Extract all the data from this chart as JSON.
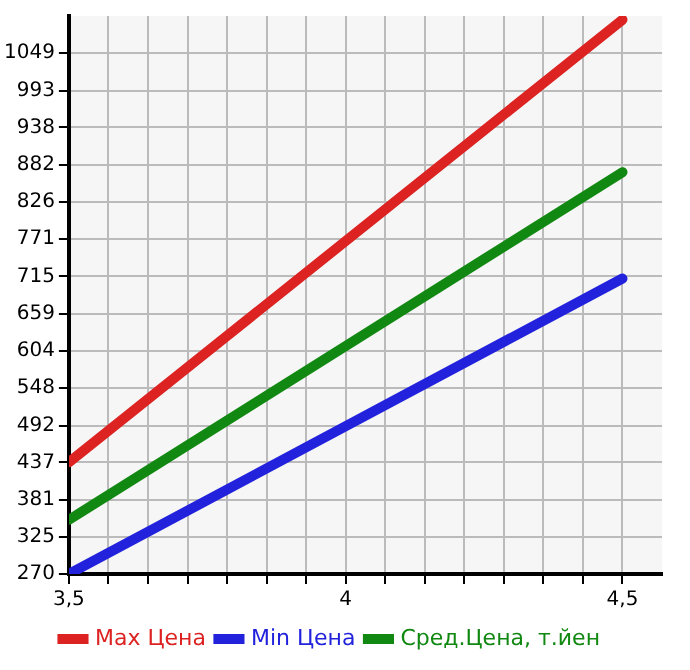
{
  "chart_data": {
    "type": "line",
    "x": [
      3.5,
      4.5
    ],
    "series": [
      {
        "name": "Max Цена",
        "color": "#dd2222",
        "values": [
          437,
          1099
        ]
      },
      {
        "name": "Min Цена",
        "color": "#2222dd",
        "values": [
          270,
          712
        ]
      },
      {
        "name": "Сред.Цена, т.йен",
        "color": "#118811",
        "values": [
          351,
          871
        ]
      }
    ],
    "xlim": [
      3.5,
      4.5714
    ],
    "xticks": [
      {
        "value": 3.5,
        "label": "3,5"
      },
      {
        "value": 3.5714,
        "label": null
      },
      {
        "value": 3.6429,
        "label": null
      },
      {
        "value": 3.7143,
        "label": null
      },
      {
        "value": 3.7857,
        "label": null
      },
      {
        "value": 3.8571,
        "label": null
      },
      {
        "value": 3.9286,
        "label": null
      },
      4,
      {
        "value": 4.0714,
        "label": null
      },
      {
        "value": 4.1429,
        "label": null
      },
      {
        "value": 4.2143,
        "label": null
      },
      {
        "value": 4.2857,
        "label": null
      },
      {
        "value": 4.3571,
        "label": null
      },
      {
        "value": 4.4286,
        "label": null
      },
      {
        "value": 4.5,
        "label": "4,5"
      }
    ],
    "ylim": [
      270,
      1104.6
    ],
    "yticks": [
      270,
      325,
      381,
      437,
      492,
      548,
      604,
      659,
      715,
      771,
      826,
      882,
      938,
      993,
      1049
    ],
    "grid": true,
    "legend": "bottom",
    "marker": "none",
    "line_style": "solid"
  }
}
